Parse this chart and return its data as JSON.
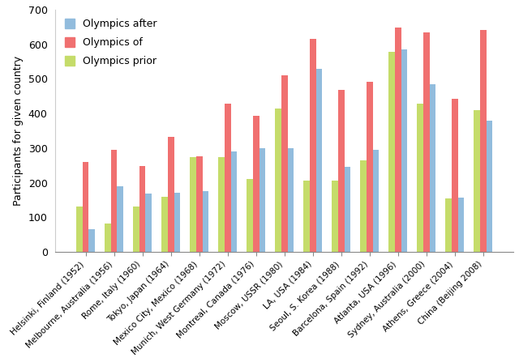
{
  "categories": [
    "Helsinki, Finland (1952)",
    "Melbourne, Australia (1956)",
    "Rome, Italy (1960)",
    "Tokyo, Japan (1964)",
    "Mexico City, Mexico (1968)",
    "Munich, West Germany (1972)",
    "Montreal, Canada (1976)",
    "Moscow, USSR (1980)",
    "LA, USA (1984)",
    "Seoul, S. Korea (1988)",
    "Barcelona, Spain (1992)",
    "Atlanta, USA (1996)",
    "Sydney, Australia (2000)",
    "Athens, Greece (2004)",
    "China (Beijing 2008)"
  ],
  "olympics_after": [
    65,
    190,
    168,
    170,
    175,
    290,
    300,
    300,
    530,
    245,
    295,
    585,
    485,
    158,
    380
  ],
  "olympics_of": [
    260,
    295,
    248,
    333,
    276,
    428,
    393,
    510,
    615,
    468,
    491,
    648,
    635,
    443,
    642
  ],
  "olympics_prior": [
    130,
    82,
    130,
    160,
    275,
    275,
    210,
    415,
    207,
    205,
    265,
    578,
    428,
    155,
    410
  ],
  "color_after": "#92BCDD",
  "color_of": "#F07070",
  "color_prior": "#C5DC6A",
  "ylabel": "Participants for given country",
  "ylim": [
    0,
    700
  ],
  "yticks": [
    0,
    100,
    200,
    300,
    400,
    500,
    600,
    700
  ],
  "legend_labels": [
    "Olympics after",
    "Olympics of",
    "Olympics prior"
  ],
  "figsize": [
    6.4,
    4.47
  ],
  "dpi": 100
}
